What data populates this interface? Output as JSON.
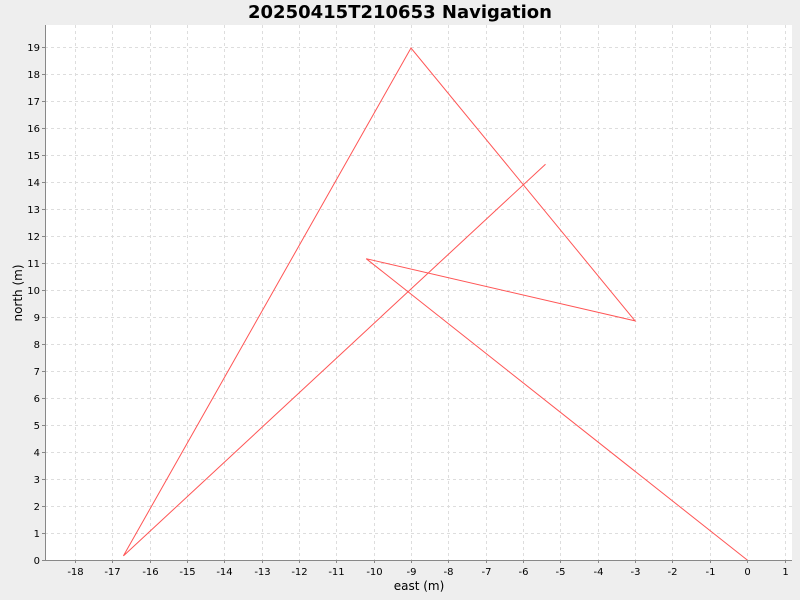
{
  "chart_data": {
    "type": "line",
    "title": "20250415T210653 Navigation",
    "xlabel": "east (m)",
    "ylabel": "north (m)",
    "xlim": [
      -18.8,
      1.2
    ],
    "ylim": [
      0,
      19.8
    ],
    "x_ticks": [
      -18,
      -17,
      -16,
      -15,
      -14,
      -13,
      -12,
      -11,
      -10,
      -9,
      -8,
      -7,
      -6,
      -5,
      -4,
      -3,
      -2,
      -1,
      0,
      1
    ],
    "y_ticks": [
      0,
      1,
      2,
      3,
      4,
      5,
      6,
      7,
      8,
      9,
      10,
      11,
      12,
      13,
      14,
      15,
      16,
      17,
      18,
      19
    ],
    "grid": true,
    "series": [
      {
        "color": "#ff5555",
        "points": [
          {
            "x": 0,
            "y": 0
          },
          {
            "x": -10.2,
            "y": 11.15
          },
          {
            "x": -3.0,
            "y": 8.85
          },
          {
            "x": -9.0,
            "y": 18.95
          },
          {
            "x": -16.7,
            "y": 0.15
          },
          {
            "x": -5.4,
            "y": 14.65
          }
        ]
      }
    ]
  }
}
